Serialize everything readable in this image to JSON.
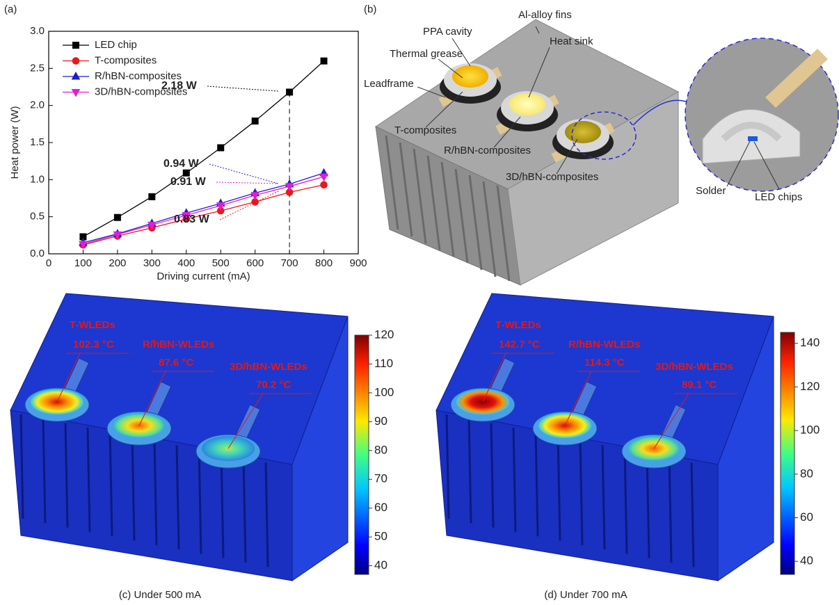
{
  "panel_labels": {
    "a": "(a)",
    "b": "(b)"
  },
  "chart_data": [
    {
      "type": "line",
      "xlabel": "Driving current (mA)",
      "ylabel": "Heat power (W)",
      "x": [
        100,
        200,
        300,
        400,
        500,
        600,
        700,
        800
      ],
      "xlim": [
        0,
        900
      ],
      "xticks": [
        0,
        100,
        200,
        300,
        400,
        500,
        600,
        700,
        800,
        900
      ],
      "ylim": [
        0,
        3
      ],
      "yticks": [
        {
          "value": 0,
          "label": "0.0"
        },
        0.5,
        {
          "value": 1,
          "label": "1.0"
        },
        1.5,
        {
          "value": 2,
          "label": "2.0"
        },
        2.5,
        {
          "value": 3,
          "label": "3.0"
        }
      ],
      "legend": "upper left",
      "series": [
        {
          "name": "LED chip",
          "color": "#000000",
          "marker": "square",
          "values": [
            0.23,
            0.49,
            0.77,
            1.09,
            1.43,
            1.79,
            2.18,
            2.6
          ]
        },
        {
          "name": "T-composites",
          "color": "#e8191b",
          "marker": "circle",
          "values": [
            0.12,
            0.24,
            0.35,
            0.47,
            0.58,
            0.7,
            0.83,
            0.93
          ]
        },
        {
          "name": "R/hBN-composites",
          "color": "#1f1fc8",
          "marker": "triangle-up",
          "values": [
            0.15,
            0.27,
            0.41,
            0.55,
            0.68,
            0.82,
            0.94,
            1.09
          ]
        },
        {
          "name": "3D/hBN-composites",
          "color": "#e01fd0",
          "marker": "triangle-down",
          "values": [
            0.13,
            0.26,
            0.39,
            0.52,
            0.65,
            0.79,
            0.91,
            1.04
          ]
        }
      ],
      "annotations": [
        {
          "text": "2.18 W",
          "color": "#000000"
        },
        {
          "text": "0.94 W",
          "color": "#1f1fc8"
        },
        {
          "text": "0.91 W",
          "color": "#e01fd0"
        },
        {
          "text": "0.83 W",
          "color": "#e8191b"
        }
      ]
    },
    {
      "type": "colorbar",
      "ylim": [
        37,
        120
      ],
      "yticks": [
        40,
        50,
        60,
        70,
        80,
        90,
        100,
        110,
        120
      ],
      "caption": "(c) Under 500 mA",
      "labels": [
        {
          "name": "T-WLEDs",
          "temp": "102.3 °C"
        },
        {
          "name": "R/hBN-WLEDs",
          "temp": "87.6 °C"
        },
        {
          "name": "3D/hBN-WLEDs",
          "temp": "70.2 °C"
        }
      ]
    },
    {
      "type": "colorbar",
      "ylim": [
        34,
        145
      ],
      "yticks": [
        40,
        60,
        80,
        100,
        120,
        140
      ],
      "caption": "(d) Under 700 mA",
      "labels": [
        {
          "name": "T-WLEDs",
          "temp": "142.7 °C"
        },
        {
          "name": "R/hBN-WLEDs",
          "temp": "114.3 °C"
        },
        {
          "name": "3D/hBN-WLEDs",
          "temp": "89.1 °C"
        }
      ]
    }
  ],
  "diagram": {
    "labels": [
      "Al-alloy fins",
      "PPA cavity",
      "Thermal grease",
      "Heat sink",
      "Leadframe",
      "T-composites",
      "R/hBN-composites",
      "3D/hBN-composites",
      "Solder",
      "LED chips"
    ]
  }
}
